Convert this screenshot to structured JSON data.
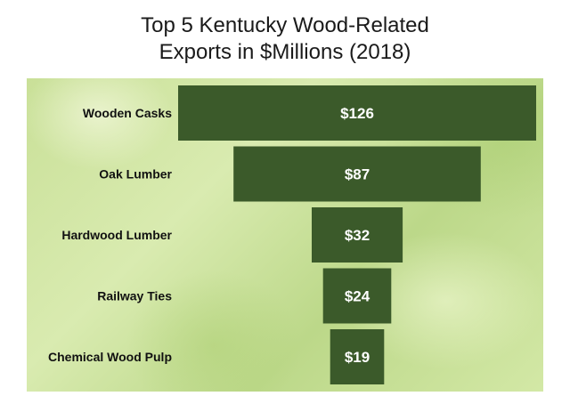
{
  "title_line1": "Top 5 Kentucky Wood-Related",
  "title_line2": "Exports in $Millions (2018)",
  "chart_data": {
    "type": "bar",
    "style": "funnel",
    "title": "Top 5 Kentucky Wood-Related Exports in $Millions (2018)",
    "categories": [
      "Wooden Casks",
      "Oak Lumber",
      "Hardwood Lumber",
      "Railway Ties",
      "Chemical Wood Pulp"
    ],
    "values": [
      126,
      87,
      32,
      24,
      19
    ],
    "value_labels": [
      "$126",
      "$87",
      "$32",
      "$24",
      "$19"
    ],
    "bar_color": "#3b5a2a",
    "background_color": "#c9e098",
    "grid": false,
    "legend": "none"
  }
}
